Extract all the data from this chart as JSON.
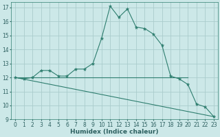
{
  "xlabel": "Humidex (Indice chaleur)",
  "xlim": [
    -0.5,
    23.5
  ],
  "ylim": [
    9,
    17.4
  ],
  "yticks": [
    9,
    10,
    11,
    12,
    13,
    14,
    15,
    16,
    17
  ],
  "xticks": [
    0,
    1,
    2,
    3,
    4,
    5,
    6,
    7,
    8,
    9,
    10,
    11,
    12,
    13,
    14,
    15,
    16,
    17,
    18,
    19,
    20,
    21,
    22,
    23
  ],
  "bg_color": "#cce8e8",
  "line_color": "#2d7d6e",
  "grid_color": "#aacccc",
  "line1_x": [
    0,
    1,
    2,
    3,
    4,
    5,
    6,
    7,
    8,
    9,
    10,
    11,
    12,
    13,
    14,
    15,
    16,
    17,
    18,
    19,
    20,
    21,
    22,
    23
  ],
  "line1_y": [
    12.0,
    11.9,
    12.0,
    12.5,
    12.5,
    12.1,
    12.1,
    12.6,
    12.6,
    13.0,
    14.8,
    17.1,
    16.3,
    16.9,
    15.6,
    15.5,
    15.1,
    14.3,
    12.1,
    11.9,
    11.5,
    10.1,
    9.9,
    9.2
  ],
  "line2_x": [
    0,
    20
  ],
  "line2_y": [
    12.0,
    12.0
  ],
  "line3_x": [
    0,
    23
  ],
  "line3_y": [
    12.0,
    9.2
  ],
  "tick_fontsize": 5.5,
  "xlabel_fontsize": 6.5
}
